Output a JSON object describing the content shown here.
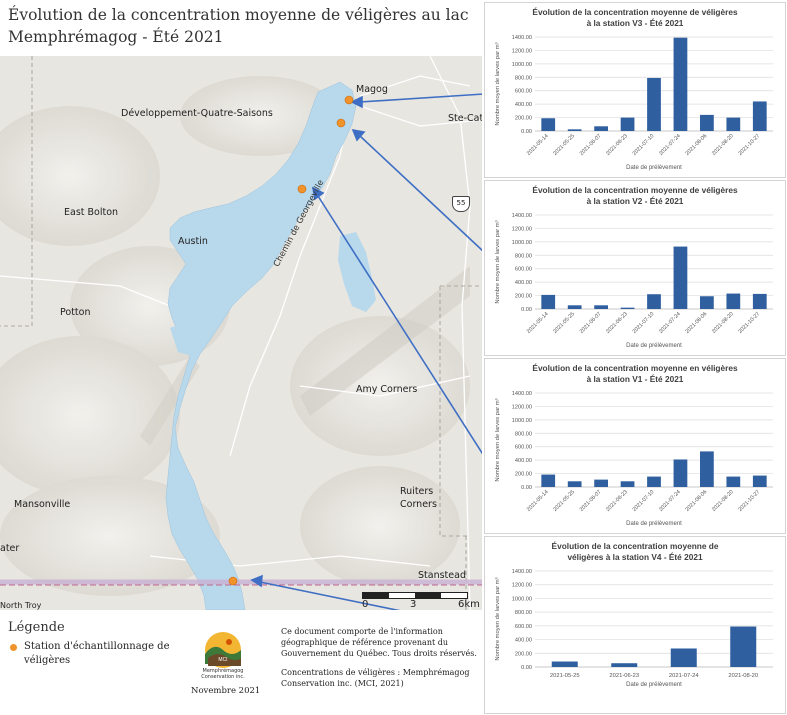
{
  "title": "Évolution de la concentration moyenne de véligères au lac Memphrémagog - Été 2021",
  "map": {
    "places": {
      "magog": "Magog",
      "developpement": "Développement-Quatre-Saisons",
      "ste_cat": "Ste-Cat",
      "east_bolton": "East Bolton",
      "austin": "Austin",
      "potton": "Potton",
      "amy_corners": "Amy Corners",
      "mansonville": "Mansonville",
      "ruiters": "Ruiters",
      "corners": "Corners",
      "stanstead": "Stanstead",
      "ater": "ater",
      "north_troy": "North Troy"
    },
    "road_label": "Chemin de Georgeville",
    "highway_shield": "55",
    "scale_labels": [
      "0",
      "3",
      "6km"
    ],
    "colors": {
      "water": "#b8d8ec",
      "terrain": "#e6e4de",
      "station": "#f0932b",
      "arrow": "#3f6fc4"
    }
  },
  "legend": {
    "title": "Légende",
    "station_label": "Station d'échantillonnage de véligères",
    "logo_name_line1": "Memphrémagog",
    "logo_name_line2": "Conservation inc.",
    "date": "Novembre 2021",
    "note_paragraph1": "Ce document comporte de l'information géographique de référence provenant du Gouvernement du Québec. Tous droits réservés.",
    "note_paragraph2": "Concentrations de véligères : Memphrémagog Conservation inc. (MCI, 2021)"
  },
  "chart_data": [
    {
      "type": "bar",
      "title": "Évolution de la concentration moyenne de véligères à la station V3 - Été 2021",
      "title_lines": [
        "Évolution de la concentration moyenne de véligères",
        "à la station V3 - Été 2021"
      ],
      "categories": [
        "2021-05-14",
        "2021-05-25",
        "2021-06-07",
        "2021-06-23",
        "2021-07-10",
        "2021-07-24",
        "2021-08-06",
        "2021-08-20",
        "2021-10-27"
      ],
      "values": [
        190,
        25,
        70,
        200,
        790,
        1390,
        240,
        200,
        440
      ],
      "xlabel": "Date de prélèvement",
      "ylabel": "Nombre moyen de larves par m³",
      "ylim": [
        0,
        1400
      ],
      "yticks": [
        "0.00",
        "200.00",
        "400.00",
        "600.00",
        "800.00",
        "1000.00",
        "1200.00",
        "1400.00"
      ],
      "color": "#2f5f9e",
      "grid": true
    },
    {
      "type": "bar",
      "title": "Évolution de la concentration moyenne de véligères à la station V2 - Été 2021",
      "title_lines": [
        "Évolution de la concentration moyenne de véligères",
        "à la station V2 - Été 2021"
      ],
      "categories": [
        "2021-05-14",
        "2021-05-25",
        "2021-06-07",
        "2021-06-23",
        "2021-07-10",
        "2021-07-24",
        "2021-08-06",
        "2021-08-20",
        "2021-10-27"
      ],
      "values": [
        210,
        55,
        55,
        20,
        220,
        930,
        190,
        230,
        225
      ],
      "xlabel": "Date de prélèvement",
      "ylabel": "Nombre moyen de larves par m³",
      "ylim": [
        0,
        1400
      ],
      "yticks": [
        "0.00",
        "200.00",
        "400.00",
        "600.00",
        "800.00",
        "1000.00",
        "1200.00",
        "1400.00"
      ],
      "color": "#2f5f9e",
      "grid": true
    },
    {
      "type": "bar",
      "title": "Évolution de la concentration moyenne en véligères à la station V1 - Été 2021",
      "title_lines": [
        "Évolution de la concentration moyenne en véligères",
        "à la station V1 - Été 2021"
      ],
      "categories": [
        "2021-05-14",
        "2021-05-25",
        "2021-06-07",
        "2021-06-23",
        "2021-07-10",
        "2021-07-24",
        "2021-08-06",
        "2021-08-20",
        "2021-10-27"
      ],
      "values": [
        185,
        85,
        110,
        85,
        155,
        410,
        530,
        155,
        170
      ],
      "xlabel": "Date de prélèvement",
      "ylabel": "Nombre moyen de larves par m³",
      "ylim": [
        0,
        1400
      ],
      "yticks": [
        "0.00",
        "200.00",
        "400.00",
        "600.00",
        "800.00",
        "1000.00",
        "1200.00",
        "1400.00"
      ],
      "color": "#2f5f9e",
      "grid": true
    },
    {
      "type": "bar",
      "title": "Évolution de la concentration moyenne de véligères à la station V4 - Été 2021",
      "title_lines": [
        "Évolution de la concentration moyenne de",
        "véligères à la station V4 - Été 2021"
      ],
      "categories": [
        "2021-05-25",
        "2021-06-23",
        "2021-07-24",
        "2021-08-20"
      ],
      "values": [
        80,
        55,
        270,
        590
      ],
      "xlabel": "Date de prélèvement",
      "ylabel": "Nombre moyen de larves par m³",
      "ylim": [
        0,
        1400
      ],
      "yticks": [
        "0.00",
        "200.00",
        "400.00",
        "600.00",
        "800.00",
        "1000.00",
        "1200.00",
        "1400.00"
      ],
      "color": "#2f5f9e",
      "grid": true
    }
  ]
}
